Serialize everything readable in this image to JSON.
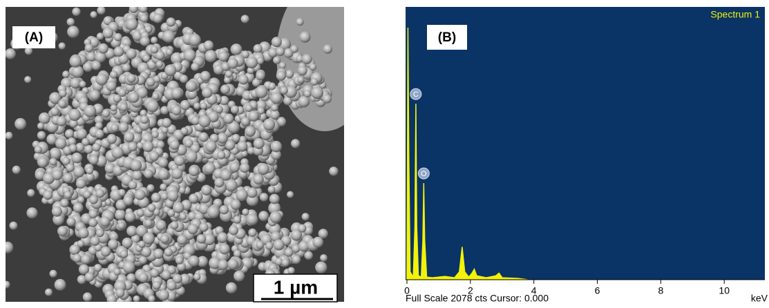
{
  "panel_a": {
    "label": "(A)",
    "scale_bar": "1 µm"
  },
  "chart_data": {
    "type": "area",
    "label": "(B)",
    "title": "Spectrum 1",
    "footer": "Full Scale 2078 cts Cursor: 0.000",
    "xlabel": "keV",
    "x": [
      0,
      0.03,
      0.06,
      0.1,
      0.2,
      0.25,
      0.28,
      0.31,
      0.36,
      0.45,
      0.5,
      0.53,
      0.56,
      0.62,
      0.8,
      1.0,
      1.2,
      1.5,
      1.65,
      1.74,
      1.82,
      1.95,
      2.05,
      2.12,
      2.2,
      2.5,
      2.8,
      2.9,
      3.0,
      3.5,
      3.8
    ],
    "series": [
      {
        "name": "Spectrum 1",
        "color": "#f2f20a",
        "values": [
          0,
          1920,
          900,
          60,
          20,
          400,
          1340,
          400,
          30,
          20,
          300,
          736,
          300,
          20,
          15,
          20,
          25,
          15,
          60,
          250,
          60,
          20,
          50,
          80,
          30,
          15,
          30,
          50,
          15,
          10,
          0
        ]
      }
    ],
    "annotations": [
      {
        "text": "C",
        "x": 0.28
      },
      {
        "text": "O",
        "x": 0.53
      }
    ],
    "xlim": [
      0,
      11.28
    ],
    "ylim": [
      0,
      2078
    ],
    "xticks": [
      0,
      2,
      4,
      6,
      8,
      10
    ],
    "background": "#0a3366"
  }
}
